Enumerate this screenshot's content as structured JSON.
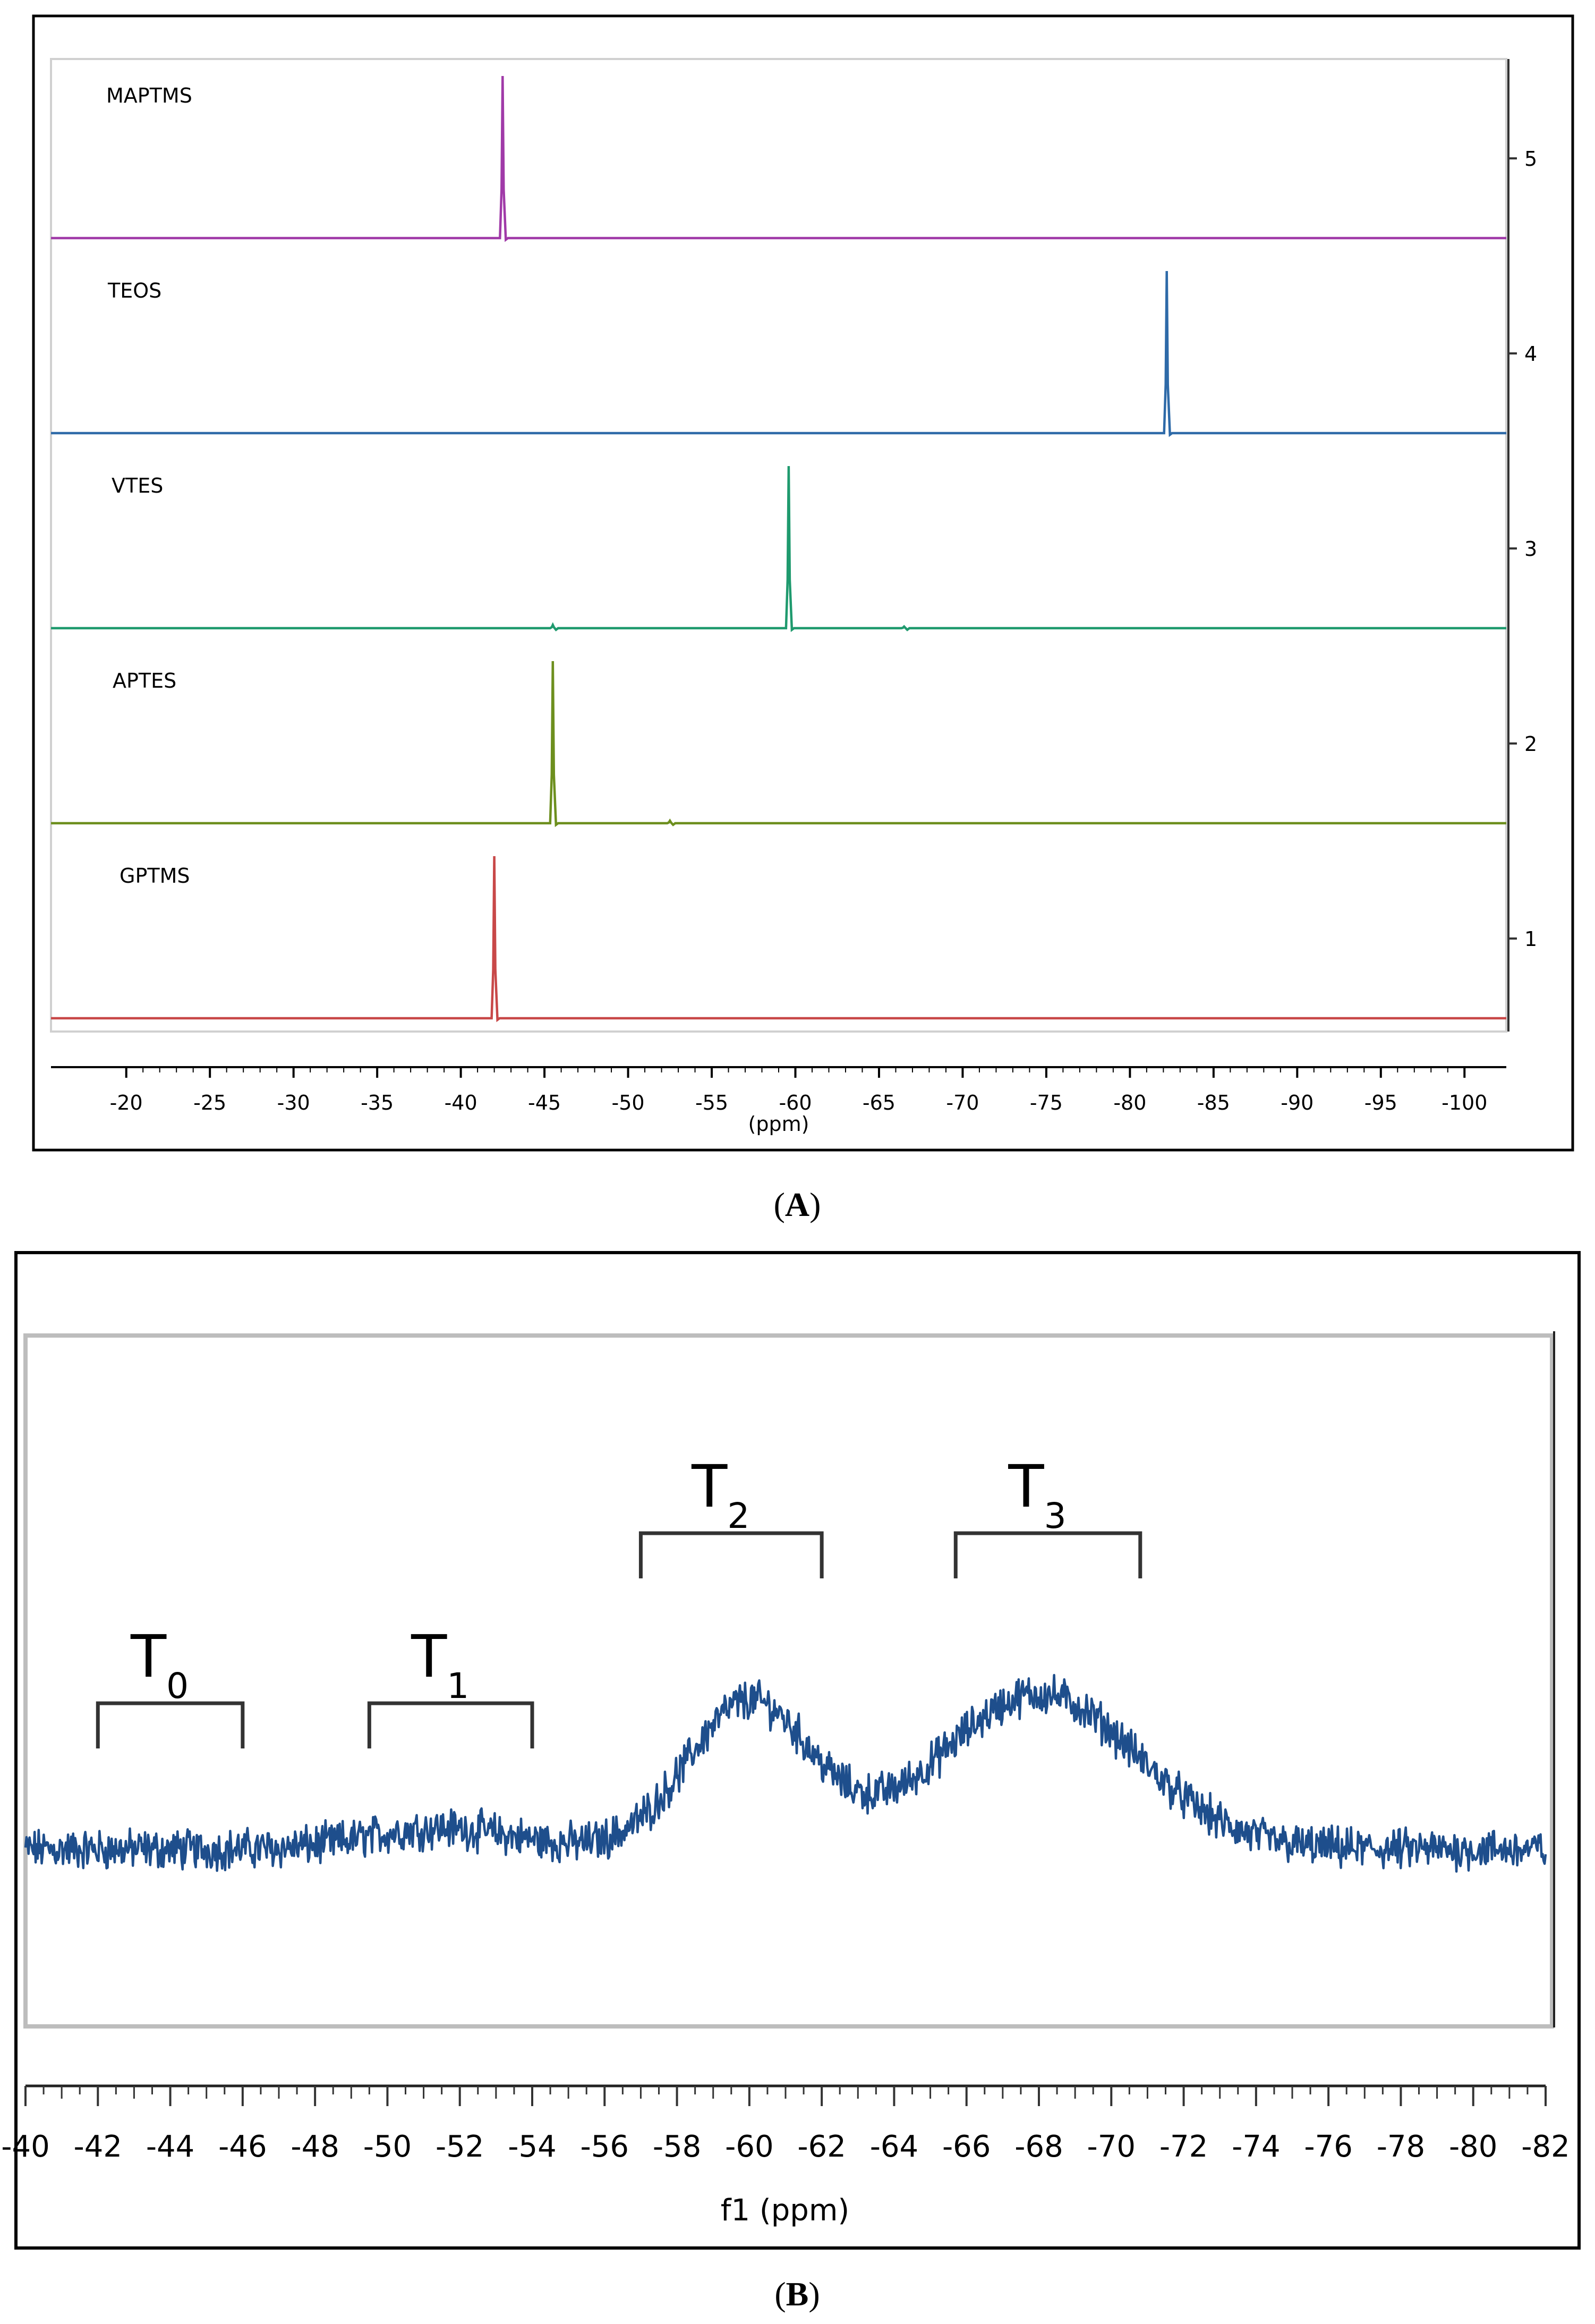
{
  "chart_data": [
    {
      "panel": "A",
      "type": "line",
      "title": "",
      "xlabel": "(ppm)",
      "ylabel": "",
      "xlim": [
        -15.5,
        -102.5
      ],
      "xticks": [
        -20,
        -25,
        -30,
        -35,
        -40,
        -45,
        -50,
        -55,
        -60,
        -65,
        -70,
        -75,
        -80,
        -85,
        -90,
        -95,
        -100
      ],
      "right_axis_ticks": [
        "5",
        "4",
        "3",
        "2",
        "1"
      ],
      "series": [
        {
          "name": "MAPTMS",
          "index": "5",
          "color": "#a03aa8",
          "peaks": [
            {
              "ppm": -42.5,
              "height": 1.0
            }
          ],
          "minor_peaks": []
        },
        {
          "name": "TEOS",
          "index": "4",
          "color": "#2e6aa8",
          "peaks": [
            {
              "ppm": -82.2,
              "height": 1.0
            }
          ],
          "minor_peaks": []
        },
        {
          "name": "VTES",
          "index": "3",
          "color": "#1f9a6e",
          "peaks": [
            {
              "ppm": -59.6,
              "height": 1.0
            }
          ],
          "minor_peaks": [
            {
              "ppm": -45.5,
              "height": 0.02
            },
            {
              "ppm": -66.5,
              "height": 0.01
            }
          ]
        },
        {
          "name": "APTES",
          "index": "2",
          "color": "#6d8f1e",
          "peaks": [
            {
              "ppm": -45.5,
              "height": 1.0
            }
          ],
          "minor_peaks": [
            {
              "ppm": -52.5,
              "height": 0.015
            }
          ]
        },
        {
          "name": "GPTMS",
          "index": "1",
          "color": "#c84848",
          "peaks": [
            {
              "ppm": -42.0,
              "height": 1.0
            }
          ],
          "minor_peaks": []
        }
      ]
    },
    {
      "panel": "B",
      "type": "line",
      "title": "",
      "xlabel": "f1 (ppm)",
      "ylabel": "",
      "xlim": [
        -40,
        -82
      ],
      "xticks": [
        -40,
        -42,
        -44,
        -46,
        -48,
        -50,
        -52,
        -54,
        -56,
        -58,
        -60,
        -62,
        -64,
        -66,
        -68,
        -70,
        -72,
        -74,
        -76,
        -78,
        -80,
        -82
      ],
      "series": [
        {
          "name": "spectrum",
          "color": "#1e4e8c",
          "broad_peaks": [
            {
              "center": -60.0,
              "height": 0.55,
              "width": 1.7
            },
            {
              "center": -68.0,
              "height": 0.58,
              "width": 2.7
            },
            {
              "center": -51.5,
              "height": 0.08,
              "width": 2.0
            }
          ]
        }
      ],
      "regions": [
        {
          "label": "T",
          "sub": "0",
          "from": -42,
          "to": -46
        },
        {
          "label": "T",
          "sub": "1",
          "from": -49.5,
          "to": -54
        },
        {
          "label": "T",
          "sub": "2",
          "from": -57,
          "to": -62
        },
        {
          "label": "T",
          "sub": "3",
          "from": -65.7,
          "to": -70.8
        }
      ]
    }
  ],
  "captions": {
    "a": "A",
    "b": "B"
  }
}
